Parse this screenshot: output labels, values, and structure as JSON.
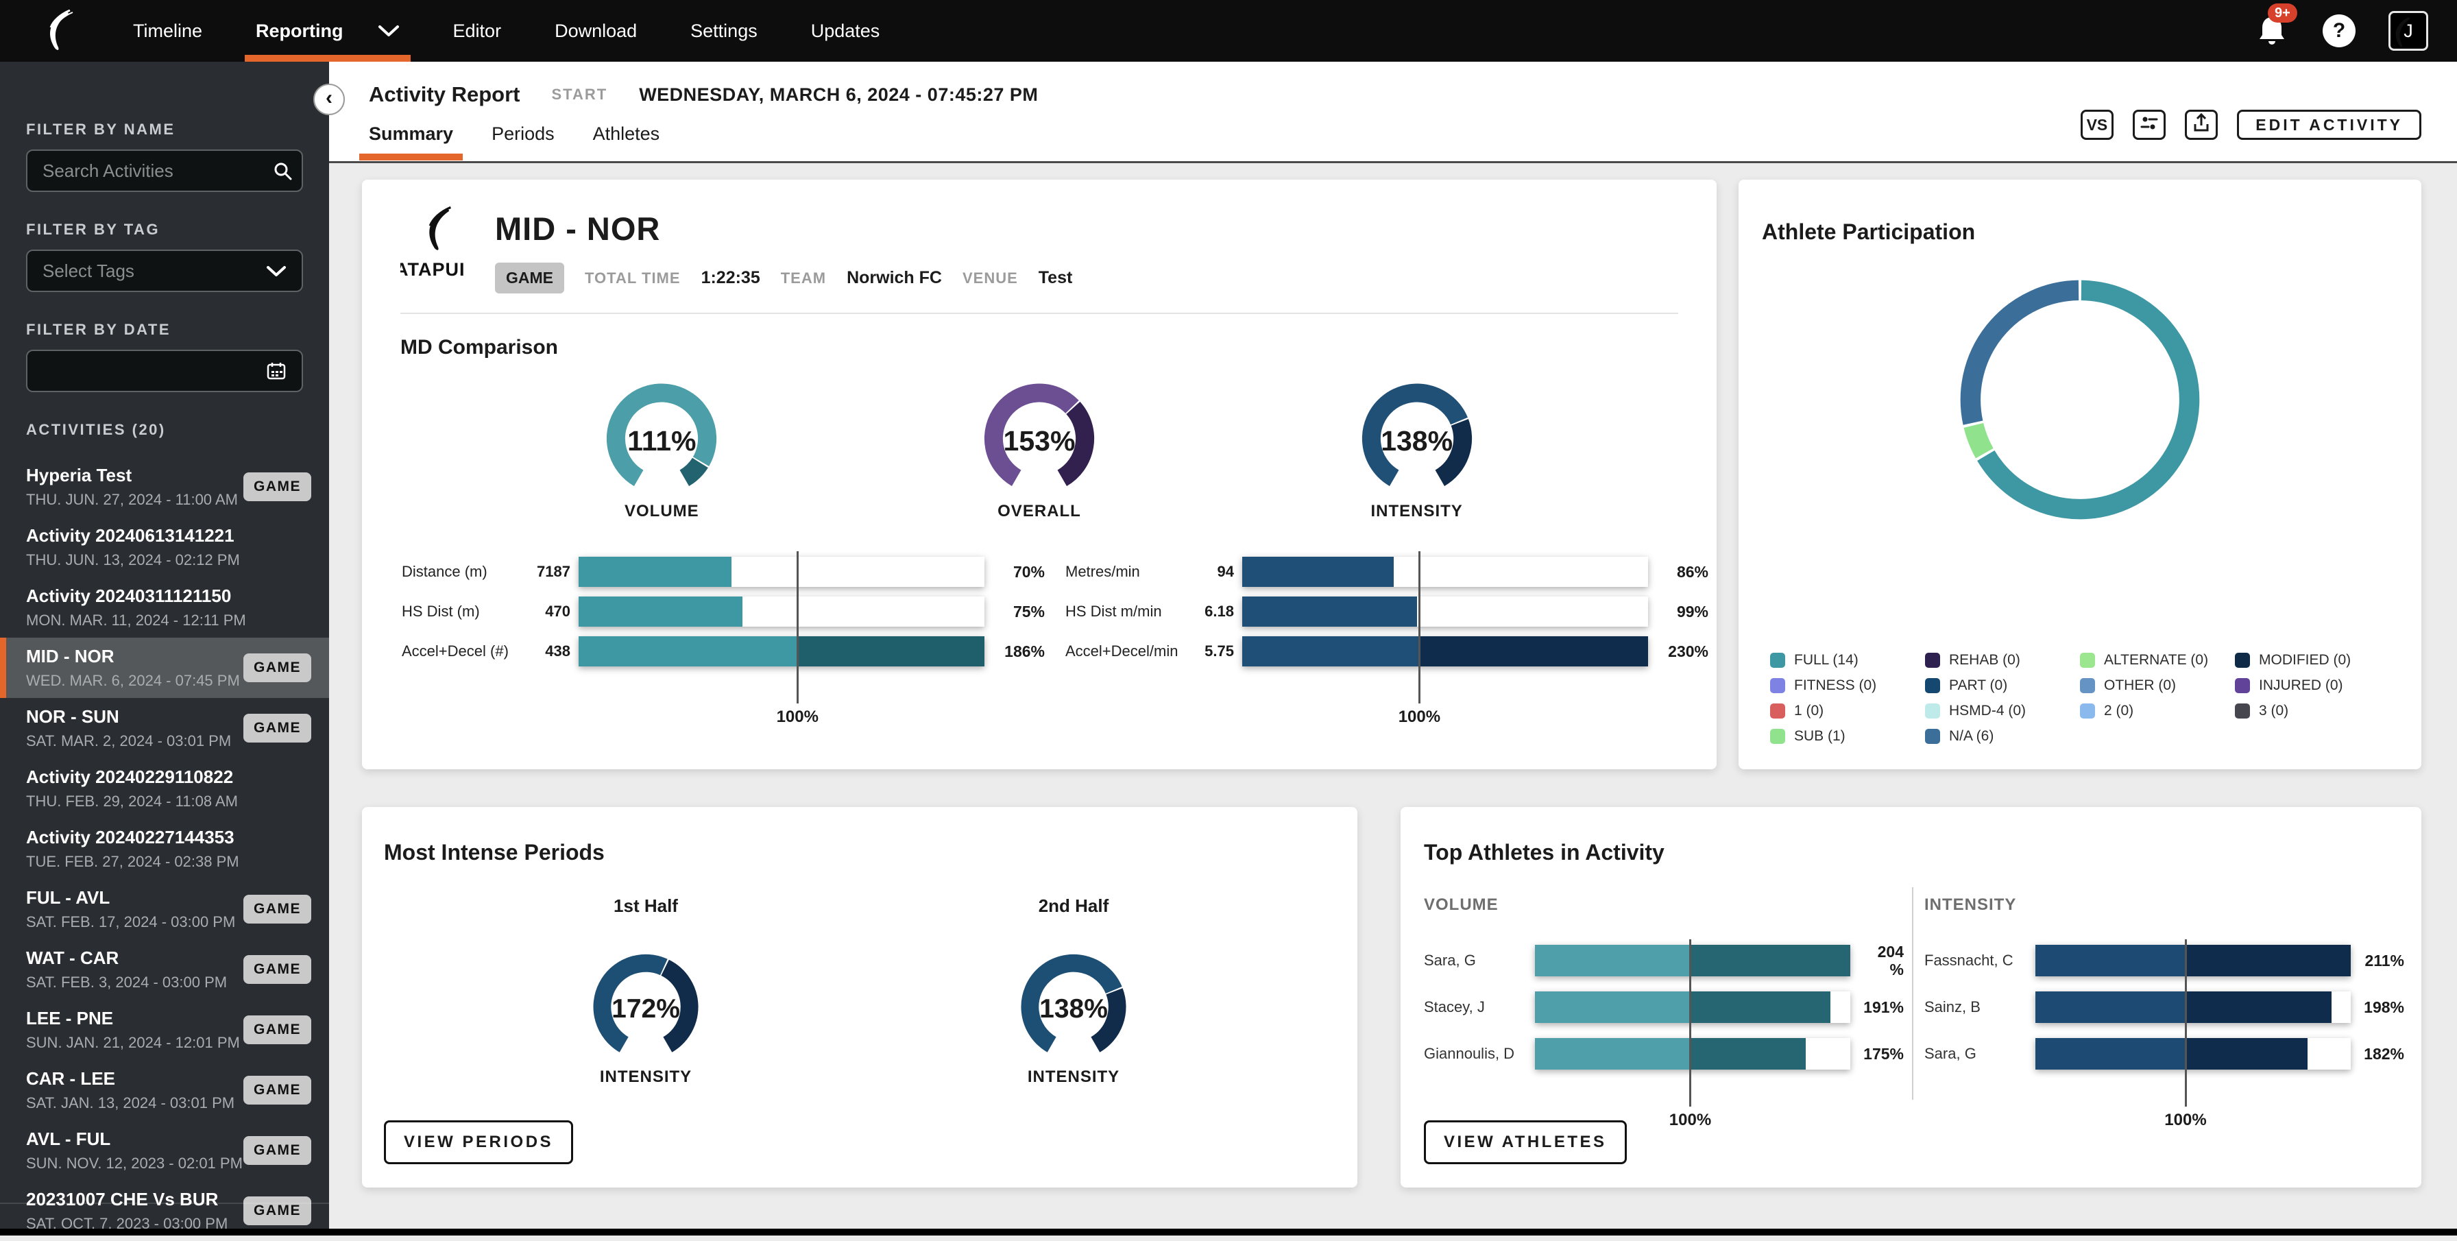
{
  "colors": {
    "accent_orange": "#E4662B",
    "teal": "#3E98A3",
    "teal_dark": "#1F5F6B",
    "teal_light": "#4E9FAA",
    "blue": "#1F4E77",
    "blue_dark": "#112E4D",
    "purple": "#6C4E93",
    "purple_dark": "#32204F",
    "notification_red": "#D7402B"
  },
  "nav": {
    "items": [
      {
        "label": "Timeline"
      },
      {
        "label": "Reporting",
        "active": true,
        "has_dropdown": true
      },
      {
        "label": "Editor"
      },
      {
        "label": "Download"
      },
      {
        "label": "Settings"
      },
      {
        "label": "Updates"
      }
    ],
    "notification_badge": "9+",
    "help_label": "?",
    "avatar_letter": "J",
    "icons": [
      "catapult-logo",
      "chevron-down",
      "bell",
      "help-circle",
      "avatar"
    ]
  },
  "sidebar": {
    "collapse_glyph": "‹",
    "filter_name_label": "FILTER BY NAME",
    "search_placeholder": "Search Activities",
    "filter_tag_label": "FILTER BY TAG",
    "tag_placeholder": "Select Tags",
    "filter_date_label": "FILTER BY DATE",
    "activities_label": "ACTIVITIES (20)",
    "activities": [
      {
        "title": "Hyperia Test",
        "date": "THU. JUN. 27, 2024 - 11:00 AM",
        "badge": "GAME"
      },
      {
        "title": "Activity 20240613141221",
        "date": "THU. JUN. 13, 2024 - 02:12 PM"
      },
      {
        "title": "Activity 20240311121150",
        "date": "MON. MAR. 11, 2024 - 12:11 PM"
      },
      {
        "title": "MID - NOR",
        "date": "WED. MAR. 6, 2024 - 07:45 PM",
        "badge": "GAME",
        "selected": true
      },
      {
        "title": "NOR - SUN",
        "date": "SAT. MAR. 2, 2024 - 03:01 PM",
        "badge": "GAME"
      },
      {
        "title": "Activity 20240229110822",
        "date": "THU. FEB. 29, 2024 - 11:08 AM"
      },
      {
        "title": "Activity 20240227144353",
        "date": "TUE. FEB. 27, 2024 - 02:38 PM"
      },
      {
        "title": "FUL - AVL",
        "date": "SAT. FEB. 17, 2024 - 03:00 PM",
        "badge": "GAME"
      },
      {
        "title": "WAT - CAR",
        "date": "SAT. FEB. 3, 2024 - 03:00 PM",
        "badge": "GAME"
      },
      {
        "title": "LEE - PNE",
        "date": "SUN. JAN. 21, 2024 - 12:01 PM",
        "badge": "GAME"
      },
      {
        "title": "CAR - LEE",
        "date": "SAT. JAN. 13, 2024 - 03:01 PM",
        "badge": "GAME"
      },
      {
        "title": "AVL - FUL",
        "date": "SUN. NOV. 12, 2023 - 02:01 PM",
        "badge": "GAME"
      },
      {
        "title": "20231007 CHE Vs BUR",
        "date": "SAT. OCT. 7, 2023 - 03:00 PM",
        "badge": "GAME"
      }
    ]
  },
  "header": {
    "title": "Activity Report",
    "start_label": "START",
    "start_value": "WEDNESDAY, MARCH 6, 2024 - 07:45:27 PM",
    "tabs": [
      {
        "label": "Summary",
        "active": true
      },
      {
        "label": "Periods"
      },
      {
        "label": "Athletes"
      }
    ],
    "vs_button": "VS",
    "edit_button": "EDIT ACTIVITY",
    "icons": [
      "compare-settings",
      "export"
    ]
  },
  "summary_card": {
    "logo_text": "ATAPUI",
    "title": "MID - NOR",
    "badge": "GAME",
    "meta": [
      {
        "label": "TOTAL TIME",
        "value": "1:22:35"
      },
      {
        "label": "TEAM",
        "value": "Norwich FC"
      },
      {
        "label": "VENUE",
        "value": "Test"
      }
    ],
    "section_title": "MD Comparison",
    "gauges": [
      {
        "display": "111%",
        "value": 111,
        "label": "VOLUME",
        "color": "#4C9EA8",
        "overflow_color": "#23636F"
      },
      {
        "display": "153%",
        "value": 153,
        "label": "OVERALL",
        "color": "#6C4E93",
        "overflow_color": "#32204F"
      },
      {
        "display": "138%",
        "value": 138,
        "label": "INTENSITY",
        "color": "#215077",
        "overflow_color": "#112C4B"
      }
    ],
    "volume_bars": {
      "max": 186,
      "marker": 100,
      "marker_label": "100%",
      "color": "#3E98A3",
      "overflow_color": "#1F5F6B",
      "rows": [
        {
          "label": "Distance (m)",
          "value": "7187",
          "pct": 70,
          "pct_label": "70%"
        },
        {
          "label": "HS Dist (m)",
          "value": "470",
          "pct": 75,
          "pct_label": "75%"
        },
        {
          "label": "Accel+Decel (#)",
          "value": "438",
          "pct": 186,
          "pct_label": "186%"
        }
      ]
    },
    "intensity_bars": {
      "max": 230,
      "marker": 100,
      "marker_label": "100%",
      "color": "#1F4E77",
      "overflow_color": "#0F2C4C",
      "rows": [
        {
          "label": "Metres/min",
          "value": "94",
          "pct": 86,
          "pct_label": "86%"
        },
        {
          "label": "HS Dist m/min",
          "value": "6.18",
          "pct": 99,
          "pct_label": "99%"
        },
        {
          "label": "Accel+Decel/min",
          "value": "5.75",
          "pct": 230,
          "pct_label": "230%"
        }
      ]
    }
  },
  "participation_card": {
    "title": "Athlete Participation",
    "donut": [
      {
        "label": "FULL",
        "count": 14,
        "color": "#3E98A3"
      },
      {
        "label": "SUB",
        "count": 1,
        "color": "#90E28D"
      },
      {
        "label": "N/A",
        "count": 6,
        "color": "#3B6F9A"
      }
    ],
    "legend_columns": [
      [
        {
          "label": "FULL (14)",
          "color": "#3E98A3"
        },
        {
          "label": "FITNESS (0)",
          "color": "#7D82E3"
        },
        {
          "label": "1 (0)",
          "color": "#D95F5F"
        },
        {
          "label": "SUB (1)",
          "color": "#90E28D"
        }
      ],
      [
        {
          "label": "REHAB (0)",
          "color": "#2E2150"
        },
        {
          "label": "PART (0)",
          "color": "#154870"
        },
        {
          "label": "HSMD-4 (0)",
          "color": "#BEEBE9"
        },
        {
          "label": "N/A (6)",
          "color": "#3B6F9A"
        }
      ],
      [
        {
          "label": "ALTERNATE (0)",
          "color": "#9CE68F"
        },
        {
          "label": "OTHER (0)",
          "color": "#6593C4"
        },
        {
          "label": "2 (0)",
          "color": "#8AB9EE"
        }
      ],
      [
        {
          "label": "MODIFIED (0)",
          "color": "#0E2A46"
        },
        {
          "label": "INJURED (0)",
          "color": "#62439A"
        },
        {
          "label": "3 (0)",
          "color": "#46464E"
        }
      ]
    ]
  },
  "periods_card": {
    "title": "Most Intense Periods",
    "gauges": [
      {
        "period": "1st Half",
        "display": "172%",
        "value": 172,
        "label": "INTENSITY",
        "color": "#1D4E74",
        "overflow_color": "#112C4B"
      },
      {
        "period": "2nd Half",
        "display": "138%",
        "value": 138,
        "label": "INTENSITY",
        "color": "#1D4E74",
        "overflow_color": "#112C4B"
      }
    ],
    "button": "VIEW PERIODS"
  },
  "athletes_card": {
    "title": "Top Athletes in Activity",
    "volume": {
      "heading": "VOLUME",
      "max": 204,
      "marker": 100,
      "marker_label": "100%",
      "color": "#4E9FAA",
      "overflow_color": "#256672",
      "rows": [
        {
          "name": "Sara, G",
          "pct": 204,
          "pct_label": "204\n%"
        },
        {
          "name": "Stacey, J",
          "pct": 191,
          "pct_label": "191%"
        },
        {
          "name": "Giannoulis, D",
          "pct": 175,
          "pct_label": "175%"
        }
      ]
    },
    "intensity": {
      "heading": "INTENSITY",
      "max": 211,
      "marker": 100,
      "marker_label": "100%",
      "color": "#1D4A73",
      "overflow_color": "#0F2C4C",
      "rows": [
        {
          "name": "Fassnacht, C",
          "pct": 211,
          "pct_label": "211%"
        },
        {
          "name": "Sainz, B",
          "pct": 198,
          "pct_label": "198%"
        },
        {
          "name": "Sara, G",
          "pct": 182,
          "pct_label": "182%"
        }
      ]
    },
    "button": "VIEW ATHLETES"
  }
}
